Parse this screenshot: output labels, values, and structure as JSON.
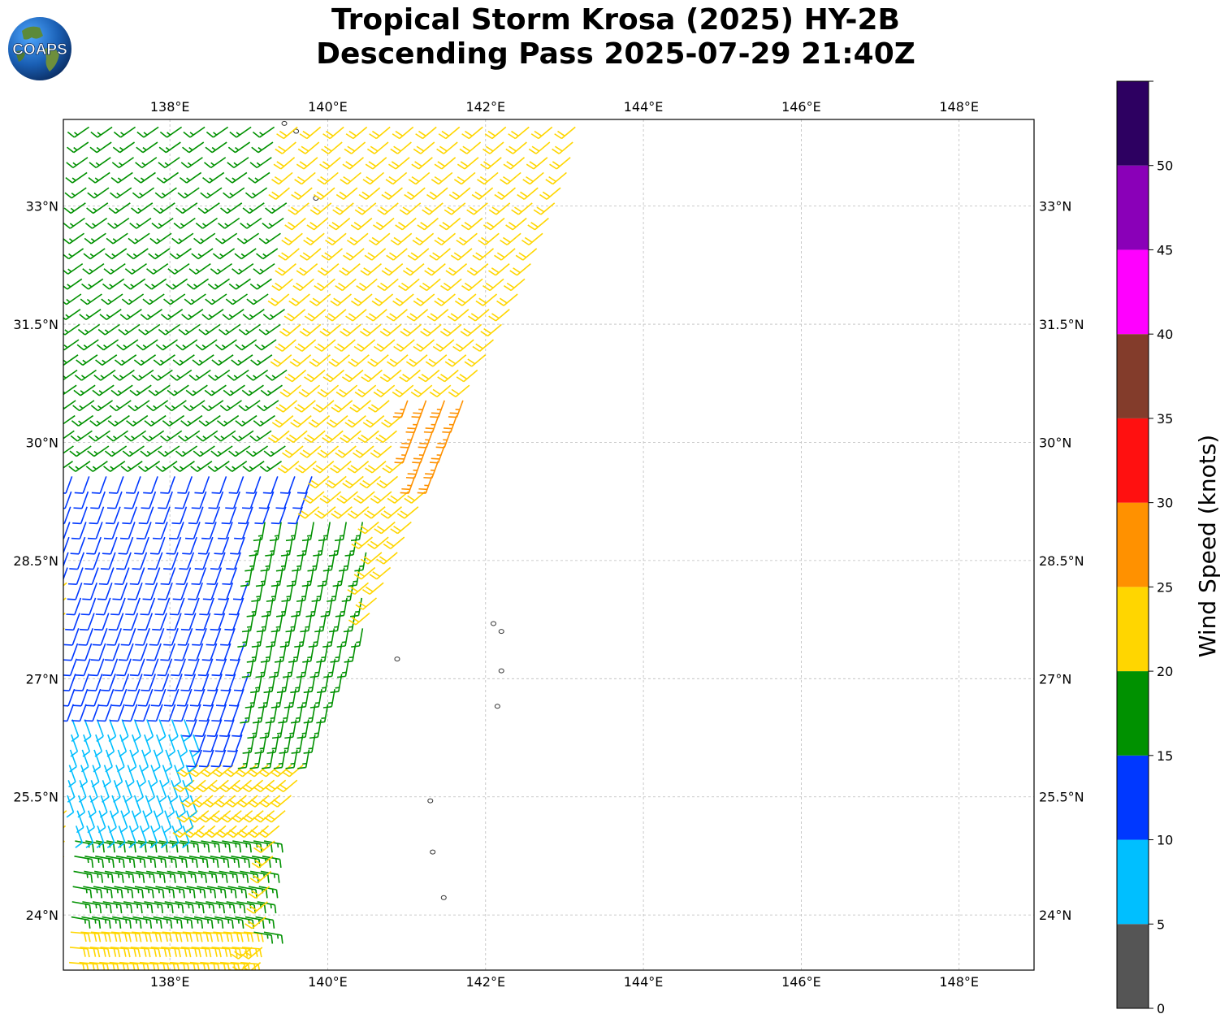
{
  "title": {
    "line1": "Tropical Storm Krosa (2025) HY-2B",
    "line2": "Descending Pass 2025-07-29 21:40Z"
  },
  "logo": {
    "text": "COAPS",
    "icon": "globe-icon"
  },
  "map": {
    "lon_range": [
      136.65,
      148.95
    ],
    "lat_range": [
      23.3,
      34.1
    ],
    "lon_ticks": [
      {
        "value": 138,
        "label": "138°E"
      },
      {
        "value": 140,
        "label": "140°E"
      },
      {
        "value": 142,
        "label": "142°E"
      },
      {
        "value": 144,
        "label": "144°E"
      },
      {
        "value": 146,
        "label": "146°E"
      },
      {
        "value": 148,
        "label": "148°E"
      }
    ],
    "lat_ticks": [
      {
        "value": 33,
        "label": "33°N"
      },
      {
        "value": 31.5,
        "label": "31.5°N"
      },
      {
        "value": 30,
        "label": "30°N"
      },
      {
        "value": 28.5,
        "label": "28.5°N"
      },
      {
        "value": 27,
        "label": "27°N"
      },
      {
        "value": 25.5,
        "label": "25.5°N"
      },
      {
        "value": 24,
        "label": "24°N"
      }
    ],
    "grid": true,
    "islands": [
      {
        "lon": 139.45,
        "lat": 34.05
      },
      {
        "lon": 139.6,
        "lat": 33.95
      },
      {
        "lon": 139.85,
        "lat": 33.1
      },
      {
        "lon": 142.1,
        "lat": 27.7
      },
      {
        "lon": 142.2,
        "lat": 27.6
      },
      {
        "lon": 142.2,
        "lat": 27.1
      },
      {
        "lon": 142.15,
        "lat": 26.65
      },
      {
        "lon": 140.88,
        "lat": 27.25
      },
      {
        "lon": 141.3,
        "lat": 25.45
      },
      {
        "lon": 141.33,
        "lat": 24.8
      },
      {
        "lon": 141.47,
        "lat": 24.22
      }
    ]
  },
  "colorbar": {
    "label": "Wind Speed (knots)",
    "bounds": [
      0,
      5,
      10,
      15,
      20,
      25,
      30,
      35,
      40,
      45,
      50,
      55
    ],
    "tick_labels": [
      "0",
      "5",
      "10",
      "15",
      "20",
      "25",
      "30",
      "35",
      "40",
      "45",
      "50"
    ],
    "colors": [
      "#555555",
      "#00bfff",
      "#0038ff",
      "#009100",
      "#ffd600",
      "#ff9100",
      "#ff1010",
      "#833c2b",
      "#ff00ff",
      "#8a00b8",
      "#2d0061"
    ]
  },
  "chart_data": {
    "type": "wind_barbs",
    "units": "knots",
    "swath": {
      "rows": 56,
      "cols": 22,
      "regions": [
        {
          "name": "north-west blue",
          "lat": [
            33.3,
            34.1
          ],
          "lon": [
            136.7,
            137.8
          ],
          "speed_kt": 12,
          "dir_deg": 250
        },
        {
          "name": "north green",
          "lat": [
            29.6,
            34.1
          ],
          "lon": [
            136.7,
            141.2
          ],
          "speed_kt": 17,
          "dir_deg": 235
        },
        {
          "name": "north-east yellow",
          "lat": [
            29.0,
            34.1
          ],
          "lon": [
            139.5,
            142.4
          ],
          "speed_kt": 22,
          "dir_deg": 230
        },
        {
          "name": "orange band",
          "lat": [
            29.5,
            30.7
          ],
          "lon": [
            141.0,
            141.8
          ],
          "speed_kt": 27,
          "dir_deg": 200
        },
        {
          "name": "central blue",
          "lat": [
            26.0,
            29.6
          ],
          "lon": [
            136.7,
            139.8
          ],
          "speed_kt": 12,
          "dir_deg": 200
        },
        {
          "name": "central green",
          "lat": [
            26.0,
            29.0
          ],
          "lon": [
            139.0,
            140.5
          ],
          "speed_kt": 17,
          "dir_deg": 190
        },
        {
          "name": "south cyan",
          "lat": [
            25.1,
            26.6
          ],
          "lon": [
            136.7,
            138.3
          ],
          "speed_kt": 8,
          "dir_deg": 160
        },
        {
          "name": "south green",
          "lat": [
            23.6,
            25.0
          ],
          "lon": [
            136.7,
            139.2
          ],
          "speed_kt": 17,
          "dir_deg": 100
        },
        {
          "name": "south yellow",
          "lat": [
            23.3,
            23.8
          ],
          "lon": [
            136.7,
            139.0
          ],
          "speed_kt": 22,
          "dir_deg": 95
        }
      ]
    }
  }
}
